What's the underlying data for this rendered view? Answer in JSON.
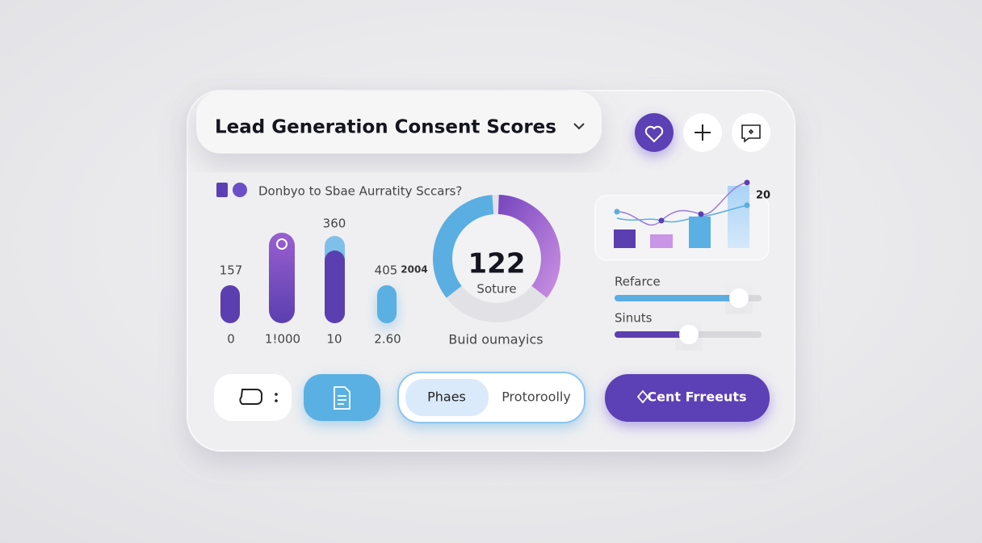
{
  "header": {
    "title": "Lead Generation Consent Scores"
  },
  "subtitle": "Donbyo to Sbae Aurratity Sccars?",
  "bars": {
    "top_labels": [
      "157",
      "360",
      "405",
      "2004"
    ],
    "bottom_labels": [
      "0",
      "1!000",
      "10",
      "2.60"
    ]
  },
  "gauge": {
    "value": "122",
    "label": "Soture",
    "caption": "Buid oumayics"
  },
  "mini_chart": {
    "label": "20"
  },
  "sliders": [
    "Refarce",
    "Sinuts"
  ],
  "segmented": [
    "Phaes",
    "Protoroolly"
  ],
  "primary_button": "Cent Frreeuts"
}
